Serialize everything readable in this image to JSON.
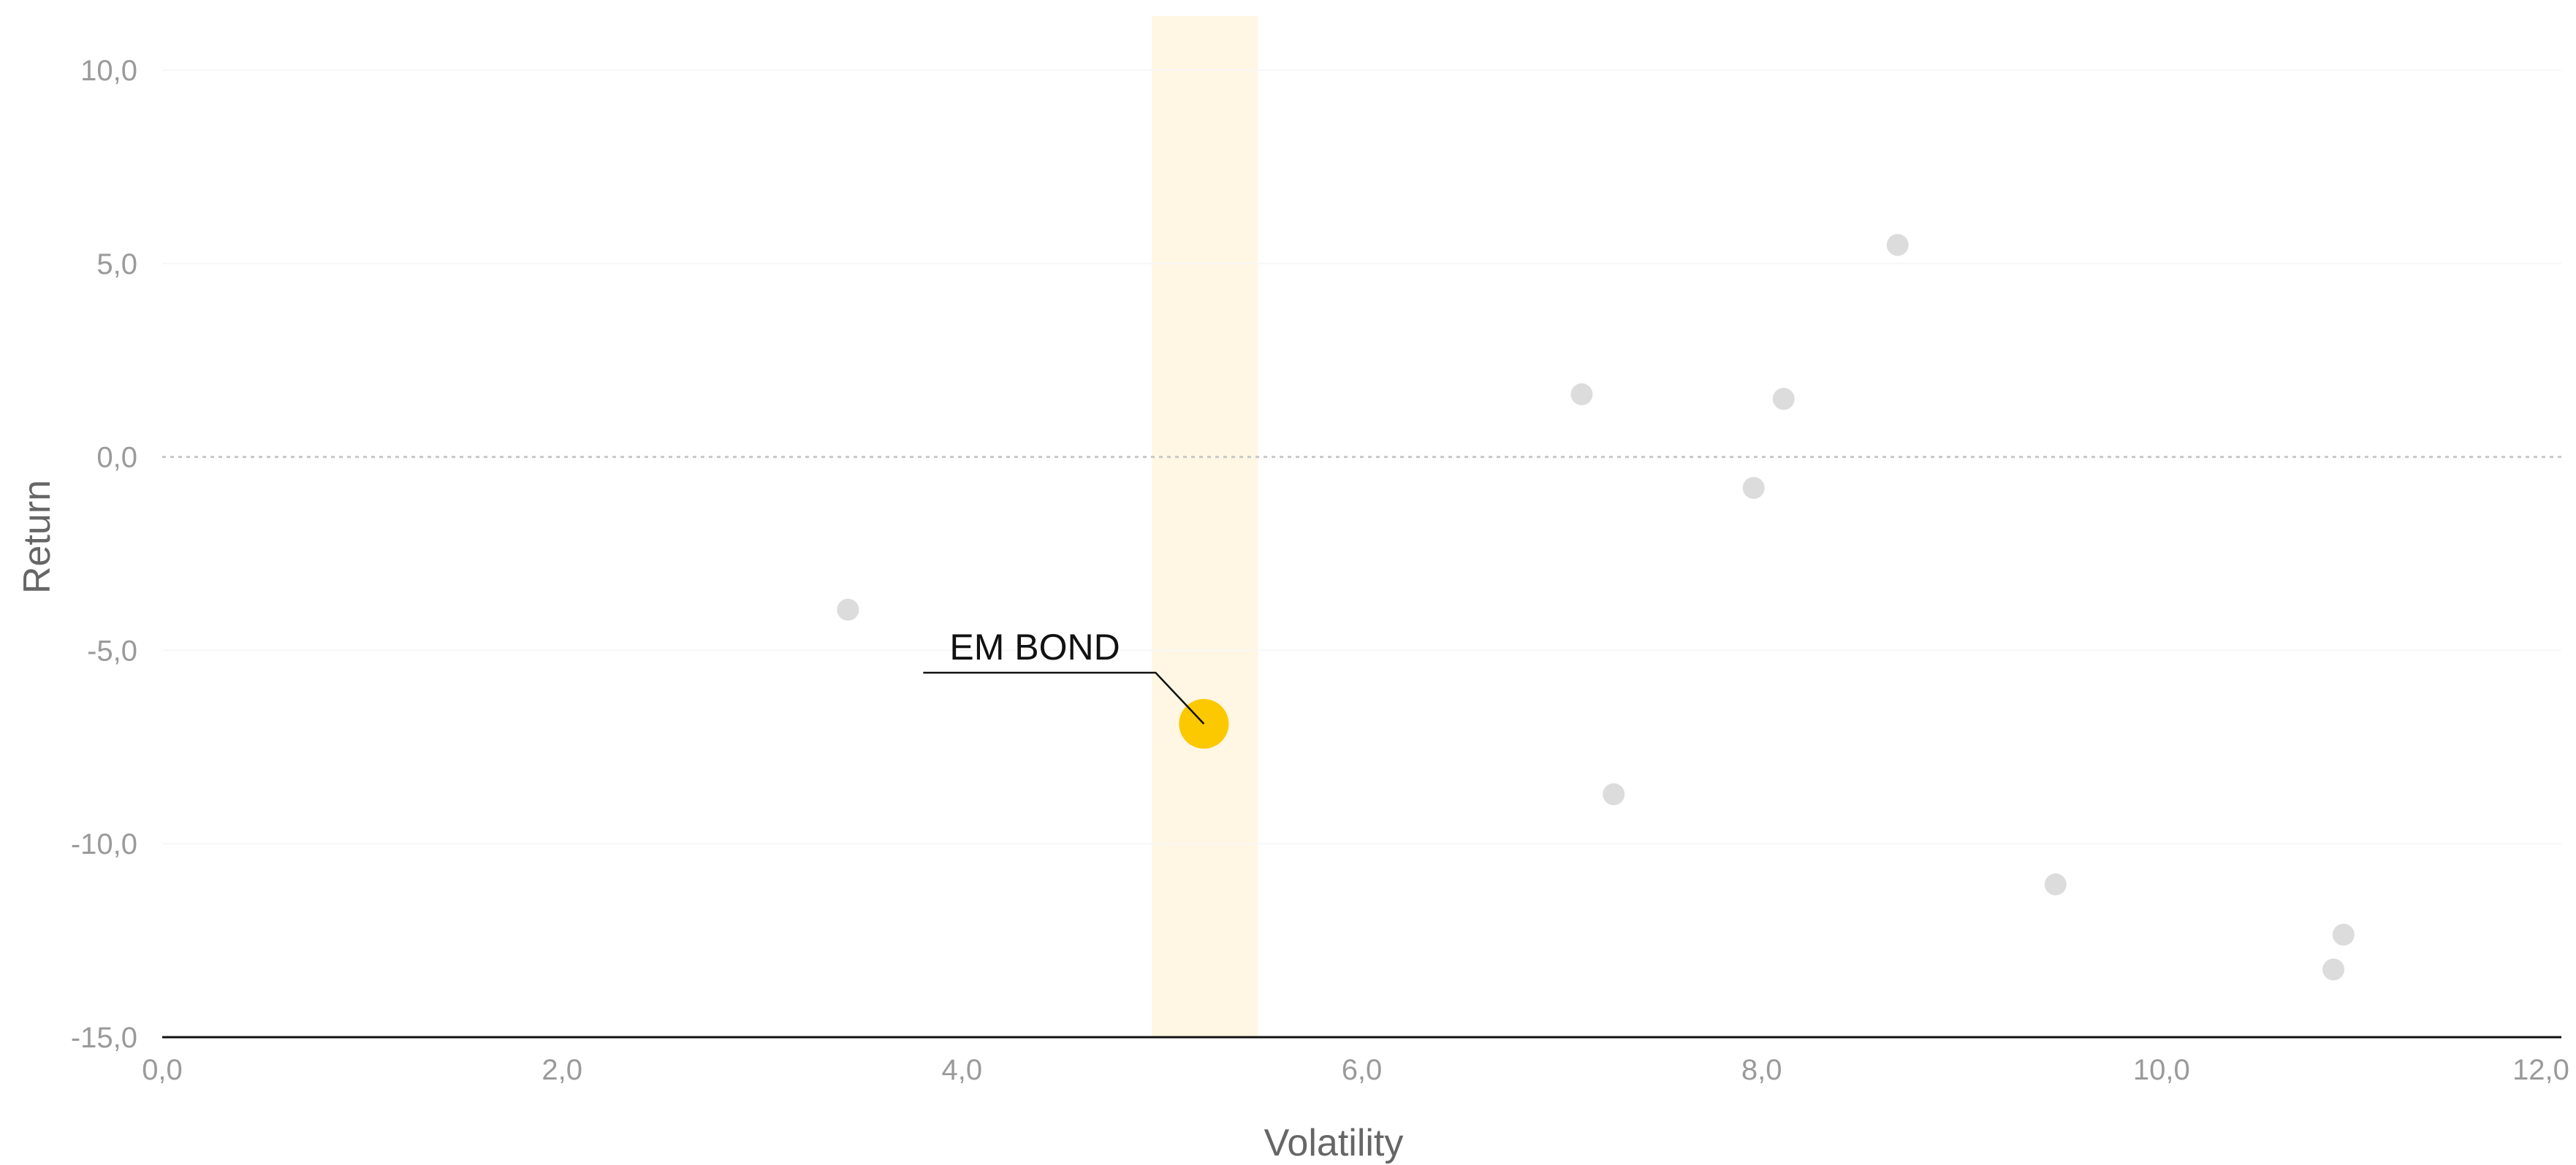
{
  "chart_data": {
    "type": "scatter",
    "title": "",
    "xlabel": "Volatility",
    "ylabel": "Return",
    "xlim": [
      0,
      12
    ],
    "ylim": [
      -15,
      10
    ],
    "x_ticks": [
      "0,0",
      "2,0",
      "4,0",
      "6,0",
      "8,0",
      "10,0",
      "12,0"
    ],
    "y_ticks": [
      "10,0",
      "5,0",
      "0,0",
      "-5,0",
      "-10,0",
      "-15,0"
    ],
    "reference_line_y": 0,
    "highlight_band_x": [
      4.95,
      5.48
    ],
    "grid": "horizontal",
    "points": [
      {
        "x": 3.43,
        "y": -3.95
      },
      {
        "x": 5.21,
        "y": -6.9,
        "highlight": true,
        "label": "EM BOND"
      },
      {
        "x": 7.1,
        "y": 1.62
      },
      {
        "x": 7.26,
        "y": -8.72
      },
      {
        "x": 7.96,
        "y": -0.8
      },
      {
        "x": 8.11,
        "y": 1.5
      },
      {
        "x": 8.68,
        "y": 5.48
      },
      {
        "x": 9.47,
        "y": -11.05
      },
      {
        "x": 10.86,
        "y": -13.25
      },
      {
        "x": 10.91,
        "y": -12.35
      }
    ],
    "colors": {
      "point": "#dcdcdc",
      "highlight": "#fcc800",
      "band": "#fff7e3",
      "axis": "#111111",
      "zero_line": "#c8c8c8",
      "grid": "#f7f7f7"
    }
  }
}
